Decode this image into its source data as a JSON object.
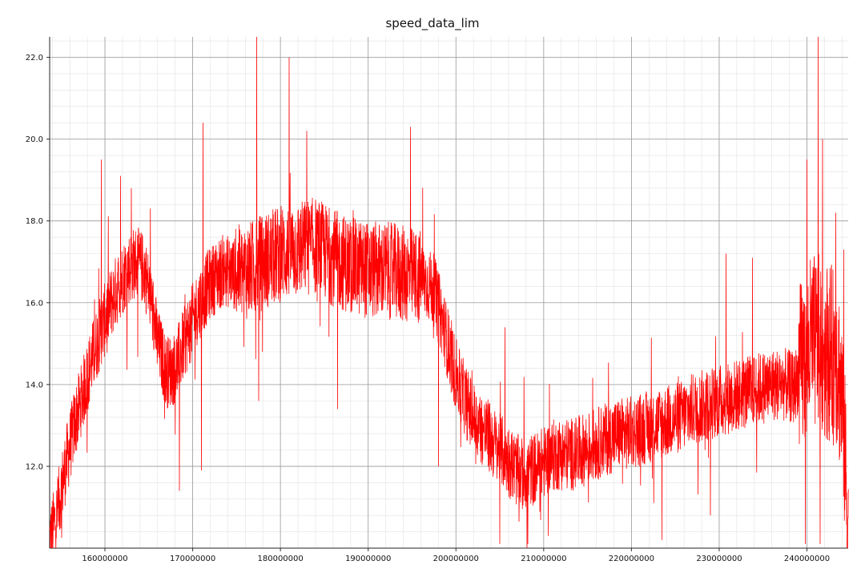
{
  "chart_data": {
    "type": "line",
    "title": "speed_data_lim",
    "xlabel": "",
    "ylabel": "",
    "xlim": [
      153700000,
      244700000
    ],
    "ylim": [
      10.0,
      22.5
    ],
    "x_ticks": [
      160000000,
      170000000,
      180000000,
      190000000,
      200000000,
      210000000,
      220000000,
      230000000,
      240000000
    ],
    "x_tick_labels": [
      "160000000",
      "170000000",
      "180000000",
      "190000000",
      "200000000",
      "210000000",
      "220000000",
      "230000000",
      "240000000"
    ],
    "y_ticks": [
      12.0,
      14.0,
      16.0,
      18.0,
      20.0,
      22.0
    ],
    "y_tick_labels": [
      "12.0",
      "14.0",
      "16.0",
      "18.0",
      "20.0",
      "22.0"
    ],
    "grid": true,
    "minor_grid": true,
    "color": "#ff0000",
    "series": [
      {
        "name": "",
        "trend": [
          [
            153700000,
            10.2
          ],
          [
            154500000,
            10.8
          ],
          [
            155500000,
            12.0
          ],
          [
            156500000,
            13.0
          ],
          [
            157500000,
            13.8
          ],
          [
            158500000,
            14.6
          ],
          [
            159500000,
            15.3
          ],
          [
            160500000,
            15.9
          ],
          [
            161500000,
            16.4
          ],
          [
            162500000,
            16.8
          ],
          [
            163500000,
            17.0
          ],
          [
            164500000,
            16.8
          ],
          [
            165300000,
            16.0
          ],
          [
            166000000,
            15.0
          ],
          [
            167000000,
            14.3
          ],
          [
            168000000,
            14.4
          ],
          [
            169000000,
            15.0
          ],
          [
            170000000,
            15.6
          ],
          [
            171000000,
            16.1
          ],
          [
            172000000,
            16.5
          ],
          [
            173500000,
            16.8
          ],
          [
            175000000,
            16.7
          ],
          [
            176500000,
            16.8
          ],
          [
            178000000,
            17.0
          ],
          [
            180000000,
            17.2
          ],
          [
            182000000,
            17.3
          ],
          [
            184000000,
            17.4
          ],
          [
            186000000,
            17.1
          ],
          [
            188000000,
            16.9
          ],
          [
            190000000,
            16.8
          ],
          [
            192000000,
            16.8
          ],
          [
            194000000,
            16.7
          ],
          [
            196000000,
            16.6
          ],
          [
            197500000,
            16.3
          ],
          [
            198500000,
            15.5
          ],
          [
            199500000,
            14.6
          ],
          [
            200500000,
            13.9
          ],
          [
            201500000,
            13.4
          ],
          [
            202500000,
            13.0
          ],
          [
            203500000,
            12.8
          ],
          [
            204500000,
            12.5
          ],
          [
            205500000,
            12.3
          ],
          [
            206500000,
            12.0
          ],
          [
            207500000,
            11.8
          ],
          [
            208500000,
            11.9
          ],
          [
            209500000,
            12.0
          ],
          [
            210500000,
            12.2
          ],
          [
            211500000,
            12.3
          ],
          [
            212500000,
            12.3
          ],
          [
            213500000,
            12.3
          ],
          [
            214500000,
            12.4
          ],
          [
            215500000,
            12.5
          ],
          [
            216500000,
            12.6
          ],
          [
            217500000,
            12.7
          ],
          [
            218500000,
            12.8
          ],
          [
            219500000,
            12.8
          ],
          [
            221000000,
            12.9
          ],
          [
            222500000,
            13.0
          ],
          [
            224000000,
            13.1
          ],
          [
            225500000,
            13.2
          ],
          [
            227000000,
            13.4
          ],
          [
            228500000,
            13.5
          ],
          [
            230000000,
            13.6
          ],
          [
            231500000,
            13.7
          ],
          [
            233000000,
            13.8
          ],
          [
            234500000,
            13.9
          ],
          [
            236000000,
            14.0
          ],
          [
            237500000,
            14.0
          ],
          [
            238500000,
            13.9
          ],
          [
            239500000,
            14.5
          ],
          [
            240500000,
            15.0
          ],
          [
            241500000,
            15.0
          ],
          [
            242500000,
            14.8
          ],
          [
            243500000,
            14.6
          ],
          [
            244000000,
            13.5
          ],
          [
            244700000,
            10.6
          ]
        ],
        "spikes": [
          [
            159600000,
            19.5
          ],
          [
            161800000,
            19.1
          ],
          [
            163000000,
            18.8
          ],
          [
            168500000,
            11.4
          ],
          [
            171000000,
            11.9
          ],
          [
            171200000,
            20.4
          ],
          [
            177300000,
            22.5
          ],
          [
            177500000,
            13.6
          ],
          [
            181000000,
            22.0
          ],
          [
            183000000,
            20.2
          ],
          [
            186500000,
            13.4
          ],
          [
            194800000,
            20.3
          ],
          [
            198000000,
            12.0
          ],
          [
            205000000,
            10.1
          ],
          [
            205600000,
            15.4
          ],
          [
            208200000,
            10.1
          ],
          [
            210500000,
            10.3
          ],
          [
            223500000,
            10.2
          ],
          [
            229000000,
            10.8
          ],
          [
            230800000,
            17.2
          ],
          [
            233800000,
            17.1
          ],
          [
            239800000,
            10.1
          ],
          [
            240000000,
            19.5
          ],
          [
            241300000,
            22.5
          ],
          [
            241500000,
            10.1
          ],
          [
            241800000,
            20.0
          ],
          [
            243300000,
            18.2
          ],
          [
            244200000,
            17.3
          ]
        ]
      }
    ]
  }
}
